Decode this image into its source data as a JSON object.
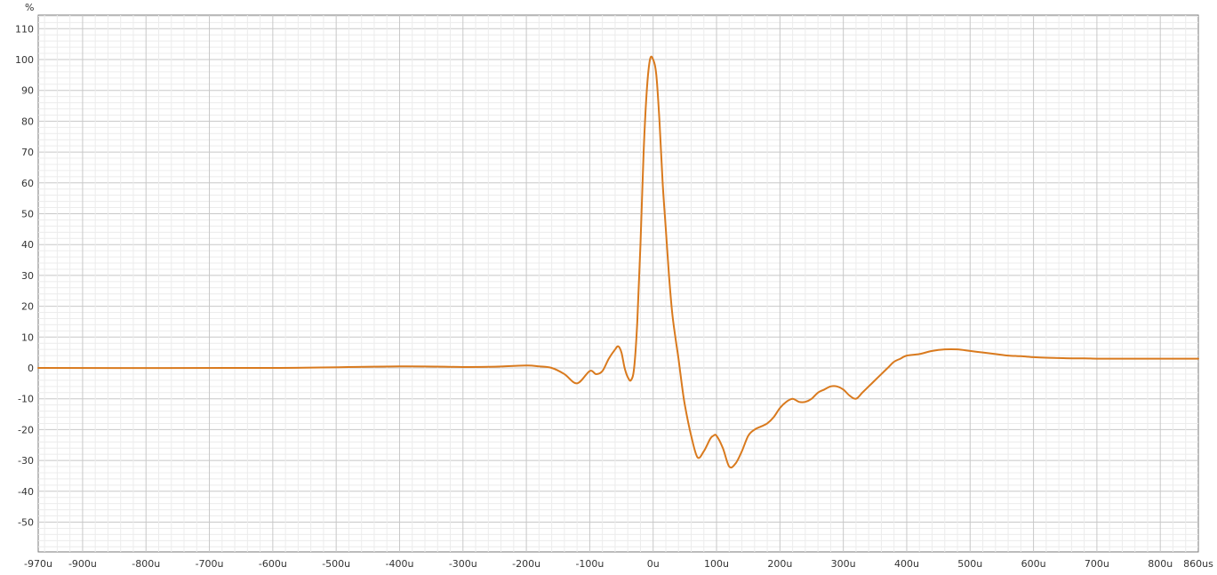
{
  "chart_data": {
    "type": "line",
    "ylabel": "%",
    "xlabel": "",
    "xlim": [
      -970,
      860
    ],
    "ylim": [
      -60,
      115
    ],
    "grid": true,
    "legend": "none",
    "x_ticks": [
      {
        "v": -970,
        "label": "-970u"
      },
      {
        "v": -900,
        "label": "-900u"
      },
      {
        "v": -800,
        "label": "-800u"
      },
      {
        "v": -700,
        "label": "-700u"
      },
      {
        "v": -600,
        "label": "-600u"
      },
      {
        "v": -500,
        "label": "-500u"
      },
      {
        "v": -400,
        "label": "-400u"
      },
      {
        "v": -300,
        "label": "-300u"
      },
      {
        "v": -200,
        "label": "-200u"
      },
      {
        "v": -100,
        "label": "-100u"
      },
      {
        "v": 0,
        "label": "0u"
      },
      {
        "v": 100,
        "label": "100u"
      },
      {
        "v": 200,
        "label": "200u"
      },
      {
        "v": 300,
        "label": "300u"
      },
      {
        "v": 400,
        "label": "400u"
      },
      {
        "v": 500,
        "label": "500u"
      },
      {
        "v": 600,
        "label": "600u"
      },
      {
        "v": 700,
        "label": "700u"
      },
      {
        "v": 800,
        "label": "800u"
      },
      {
        "v": 860,
        "label": "860us"
      }
    ],
    "y_ticks": [
      {
        "v": 110,
        "label": "110"
      },
      {
        "v": 100,
        "label": "100"
      },
      {
        "v": 90,
        "label": "90"
      },
      {
        "v": 80,
        "label": "80"
      },
      {
        "v": 70,
        "label": "70"
      },
      {
        "v": 60,
        "label": "60"
      },
      {
        "v": 50,
        "label": "50"
      },
      {
        "v": 40,
        "label": "40"
      },
      {
        "v": 30,
        "label": "30"
      },
      {
        "v": 20,
        "label": "20"
      },
      {
        "v": 10,
        "label": "10"
      },
      {
        "v": 0,
        "label": "0"
      },
      {
        "v": -10,
        "label": "-10"
      },
      {
        "v": -20,
        "label": "-20"
      },
      {
        "v": -30,
        "label": "-30"
      },
      {
        "v": -40,
        "label": "-40"
      },
      {
        "v": -50,
        "label": "-50"
      }
    ],
    "series": [
      {
        "color": "#d97a1e",
        "x": [
          -970,
          -600,
          -400,
          -300,
          -250,
          -200,
          -180,
          -160,
          -140,
          -120,
          -100,
          -90,
          -80,
          -70,
          -60,
          -55,
          -50,
          -45,
          -40,
          -35,
          -30,
          -25,
          -20,
          -15,
          -10,
          -5,
          0,
          5,
          10,
          15,
          20,
          25,
          30,
          35,
          40,
          45,
          50,
          60,
          70,
          80,
          90,
          95,
          100,
          110,
          120,
          130,
          140,
          150,
          160,
          170,
          180,
          190,
          200,
          210,
          220,
          230,
          240,
          250,
          260,
          270,
          280,
          290,
          300,
          310,
          320,
          330,
          340,
          350,
          360,
          370,
          380,
          390,
          400,
          420,
          440,
          460,
          480,
          500,
          520,
          540,
          560,
          580,
          600,
          620,
          640,
          660,
          680,
          700,
          720,
          740,
          760,
          780,
          800,
          820,
          840,
          860
        ],
        "y": [
          0,
          0,
          0.5,
          0.3,
          0.4,
          0.8,
          0.5,
          0,
          -2,
          -5,
          -1,
          -2,
          -1,
          3,
          6,
          7,
          5,
          0,
          -3,
          -4,
          0,
          15,
          40,
          70,
          90,
          100,
          100,
          95,
          80,
          60,
          45,
          30,
          18,
          10,
          3,
          -5,
          -12,
          -22,
          -29,
          -27,
          -23,
          -22,
          -22,
          -26,
          -32,
          -31,
          -27,
          -22,
          -20,
          -19,
          -18,
          -16,
          -13,
          -11,
          -10,
          -11,
          -11,
          -10,
          -8,
          -7,
          -6,
          -6,
          -7,
          -9,
          -10,
          -8,
          -6,
          -4,
          -2,
          0,
          2,
          3,
          4,
          4.5,
          5.5,
          6,
          6,
          5.5,
          5,
          4.5,
          4,
          3.8,
          3.5,
          3.3,
          3.2,
          3.1,
          3.1,
          3,
          3,
          3,
          3,
          3,
          3,
          3,
          3,
          3
        ],
        "_comment": ""
      }
    ]
  }
}
